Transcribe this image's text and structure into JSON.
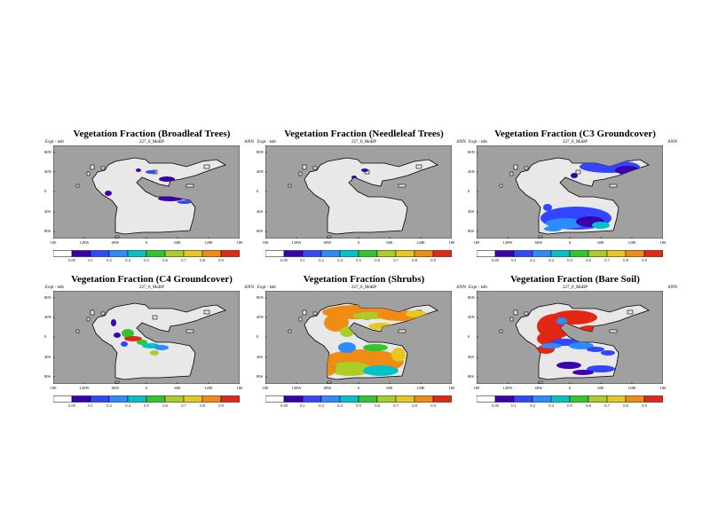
{
  "header": {
    "expt_label": "Expt - tstb",
    "run_label": "227_0_MoBP",
    "season": "ANN"
  },
  "panels": [
    {
      "title": "Vegetation Fraction (Broadleaf Trees)",
      "colorbar_ticks": [
        "0.05",
        "0.1",
        "0.2",
        "0.4",
        "0.5",
        "0.6",
        "0.7",
        "0.8",
        "0.9"
      ]
    },
    {
      "title": "Vegetation Fraction (Needleleaf Trees)",
      "colorbar_ticks": [
        "0.05",
        "0.1",
        "0.2",
        "0.4",
        "0.5",
        "0.6",
        "0.7",
        "0.8",
        "0.9"
      ]
    },
    {
      "title": "Vegetation Fraction (C3 Groundcover)",
      "colorbar_ticks": [
        "0.05",
        "0.1",
        "0.2",
        "0.4",
        "0.5",
        "0.6",
        "0.7",
        "0.8",
        "0.9"
      ]
    },
    {
      "title": "Vegetation Fraction (C4 Groundcover)",
      "colorbar_ticks": [
        "0.05",
        "0.1",
        "0.2",
        "0.4",
        "0.5",
        "0.6",
        "0.7",
        "0.8",
        "0.9"
      ]
    },
    {
      "title": "Vegetation Fraction (Shrubs)",
      "colorbar_ticks": [
        "0.05",
        "0.1",
        "0.2",
        "0.4",
        "0.5",
        "0.6",
        "0.7",
        "0.8",
        "0.9"
      ]
    },
    {
      "title": "Vegetation Fraction (Bare Soil)",
      "colorbar_ticks": [
        "0.05",
        "0.1",
        "0.2",
        "0.4",
        "0.5",
        "0.6",
        "0.7",
        "0.8",
        "0.9"
      ]
    }
  ],
  "map_axes": {
    "lat_labels": [
      "80N",
      "40N",
      "0",
      "40S",
      "80S"
    ],
    "lon_labels": [
      "180",
      "120W",
      "60W",
      "0",
      "60E",
      "120E",
      "180"
    ]
  },
  "colors": {
    "ocean": "#a0a0a0",
    "land_bg": "#e8e8e8",
    "scale": [
      "#ffffff",
      "#3b00b0",
      "#3246ff",
      "#2a8cff",
      "#00c2c8",
      "#2ec82e",
      "#aacd28",
      "#e6c81e",
      "#f08c14",
      "#e22814"
    ]
  }
}
